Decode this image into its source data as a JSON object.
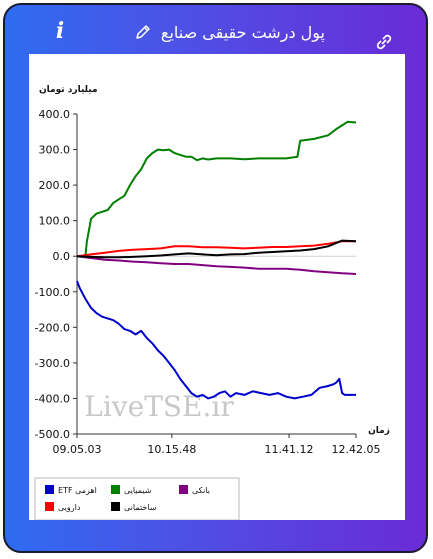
{
  "header": {
    "title": "پول درشت حقیقی صنایع",
    "info_icon_glyph": "i",
    "icons": [
      "info-icon",
      "pencil-icon",
      "link-icon"
    ]
  },
  "chart_data": {
    "type": "line",
    "ylabel": "میلیارد تومان",
    "xlabel": "زمان",
    "ylim": [
      -500,
      400
    ],
    "yticks": [
      "400.0",
      "300.0",
      "200.0",
      "100.0",
      "0.0",
      "-100.0",
      "-200.0",
      "-300.0",
      "-400.0",
      "-500.0"
    ],
    "xticks": [
      "09.05.03",
      "10.15.48",
      "11.41.12",
      "12.42.05"
    ],
    "xlim": [
      0,
      100
    ],
    "xtick_positions": [
      0,
      34,
      76,
      100
    ],
    "grid": false,
    "watermark": "LiveTSE.ir",
    "legend_position": "bottom",
    "series": [
      {
        "name": "ETF اهرمی",
        "color": "#0000cc",
        "x": [
          0,
          1,
          3,
          5,
          7,
          9,
          11,
          13,
          15,
          17,
          19,
          21,
          23,
          25,
          27,
          29,
          31,
          33,
          35,
          37,
          39,
          41,
          43,
          45,
          47,
          49,
          51,
          53,
          55,
          57,
          60,
          63,
          66,
          69,
          72,
          75,
          78,
          81,
          84,
          87,
          90,
          92,
          93,
          94,
          95,
          96,
          98,
          100
        ],
        "values": [
          -70,
          -90,
          -120,
          -145,
          -160,
          -170,
          -175,
          -180,
          -190,
          -205,
          -210,
          -220,
          -210,
          -230,
          -245,
          -265,
          -280,
          -300,
          -320,
          -345,
          -365,
          -385,
          -395,
          -390,
          -400,
          -395,
          -385,
          -380,
          -395,
          -385,
          -390,
          -380,
          -385,
          -390,
          -385,
          -395,
          -400,
          -395,
          -390,
          -370,
          -365,
          -360,
          -355,
          -345,
          -385,
          -390,
          -390,
          -390
        ]
      },
      {
        "name": "شیمیایی",
        "color": "#008000",
        "x": [
          0,
          3,
          3.5,
          5,
          7,
          9,
          11,
          13,
          15,
          17,
          19,
          21,
          23,
          25,
          27,
          29,
          31,
          33,
          35,
          37,
          39,
          41,
          43,
          45,
          47,
          50,
          55,
          60,
          65,
          70,
          75,
          79,
          80,
          85,
          90,
          93,
          95,
          97,
          100
        ],
        "values": [
          0,
          0,
          40,
          105,
          120,
          125,
          130,
          150,
          160,
          170,
          200,
          225,
          245,
          275,
          290,
          300,
          298,
          300,
          290,
          285,
          280,
          280,
          270,
          275,
          272,
          275,
          275,
          273,
          275,
          275,
          275,
          280,
          325,
          330,
          340,
          358,
          368,
          378,
          376
        ]
      },
      {
        "name": "بانکی",
        "color": "#800080",
        "x": [
          0,
          5,
          10,
          15,
          20,
          25,
          30,
          35,
          40,
          45,
          50,
          55,
          60,
          65,
          70,
          75,
          80,
          85,
          90,
          95,
          100
        ],
        "values": [
          0,
          -5,
          -10,
          -12,
          -15,
          -17,
          -20,
          -22,
          -22,
          -25,
          -28,
          -30,
          -32,
          -35,
          -35,
          -35,
          -38,
          -42,
          -45,
          -48,
          -50
        ]
      },
      {
        "name": "دارویی",
        "color": "#ff0000",
        "x": [
          0,
          5,
          10,
          15,
          20,
          25,
          30,
          35,
          40,
          45,
          50,
          55,
          60,
          65,
          70,
          75,
          80,
          85,
          90,
          95,
          100
        ],
        "values": [
          0,
          5,
          10,
          15,
          18,
          20,
          22,
          28,
          28,
          25,
          25,
          24,
          22,
          24,
          26,
          26,
          28,
          30,
          35,
          42,
          42
        ]
      },
      {
        "name": "ساختمانی",
        "color": "#000000",
        "x": [
          0,
          5,
          10,
          15,
          20,
          25,
          30,
          35,
          40,
          45,
          50,
          55,
          60,
          65,
          70,
          75,
          80,
          85,
          90,
          95,
          100
        ],
        "values": [
          0,
          -2,
          -3,
          -3,
          -2,
          0,
          2,
          5,
          8,
          5,
          3,
          5,
          6,
          10,
          12,
          14,
          16,
          20,
          28,
          44,
          42
        ]
      }
    ],
    "legend_order": [
      "ETF اهرمی",
      "شیمیایی",
      "بانکی",
      "دارویی",
      "ساختمانی"
    ]
  }
}
